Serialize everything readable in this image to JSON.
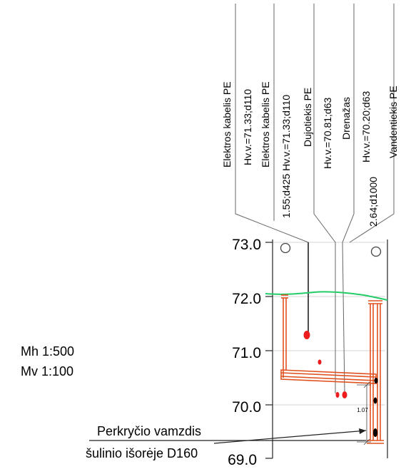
{
  "scales": {
    "horizontal": "Mh 1:500",
    "vertical": "Mv 1:100"
  },
  "elevations": [
    "73.0",
    "72.0",
    "71.0",
    "70.0",
    "69.0"
  ],
  "crossing_labels": [
    "Elektros kabelis PE",
    "Hv.v.=71.33;d110",
    "Elektros kabelis PE",
    "1.55;d425 Hv.v.=71.33;d110",
    "Dujotiekis PE",
    "Hv.v.=70.81;d63",
    "Drenažas",
    "Hv.v.=70.20;d63",
    "2.64;d1000",
    "Vandentiekis PE"
  ],
  "dimension": "1.07",
  "callout": {
    "line1": "Perkryčio vamzdis",
    "line2": "šulinio išorėje D160"
  },
  "colors": {
    "ground_line": "#22cc66",
    "structure": "#e0501e",
    "pipe_marker": "#ee1c1c",
    "lines": "#555555",
    "grid": "#c8c8c8"
  }
}
